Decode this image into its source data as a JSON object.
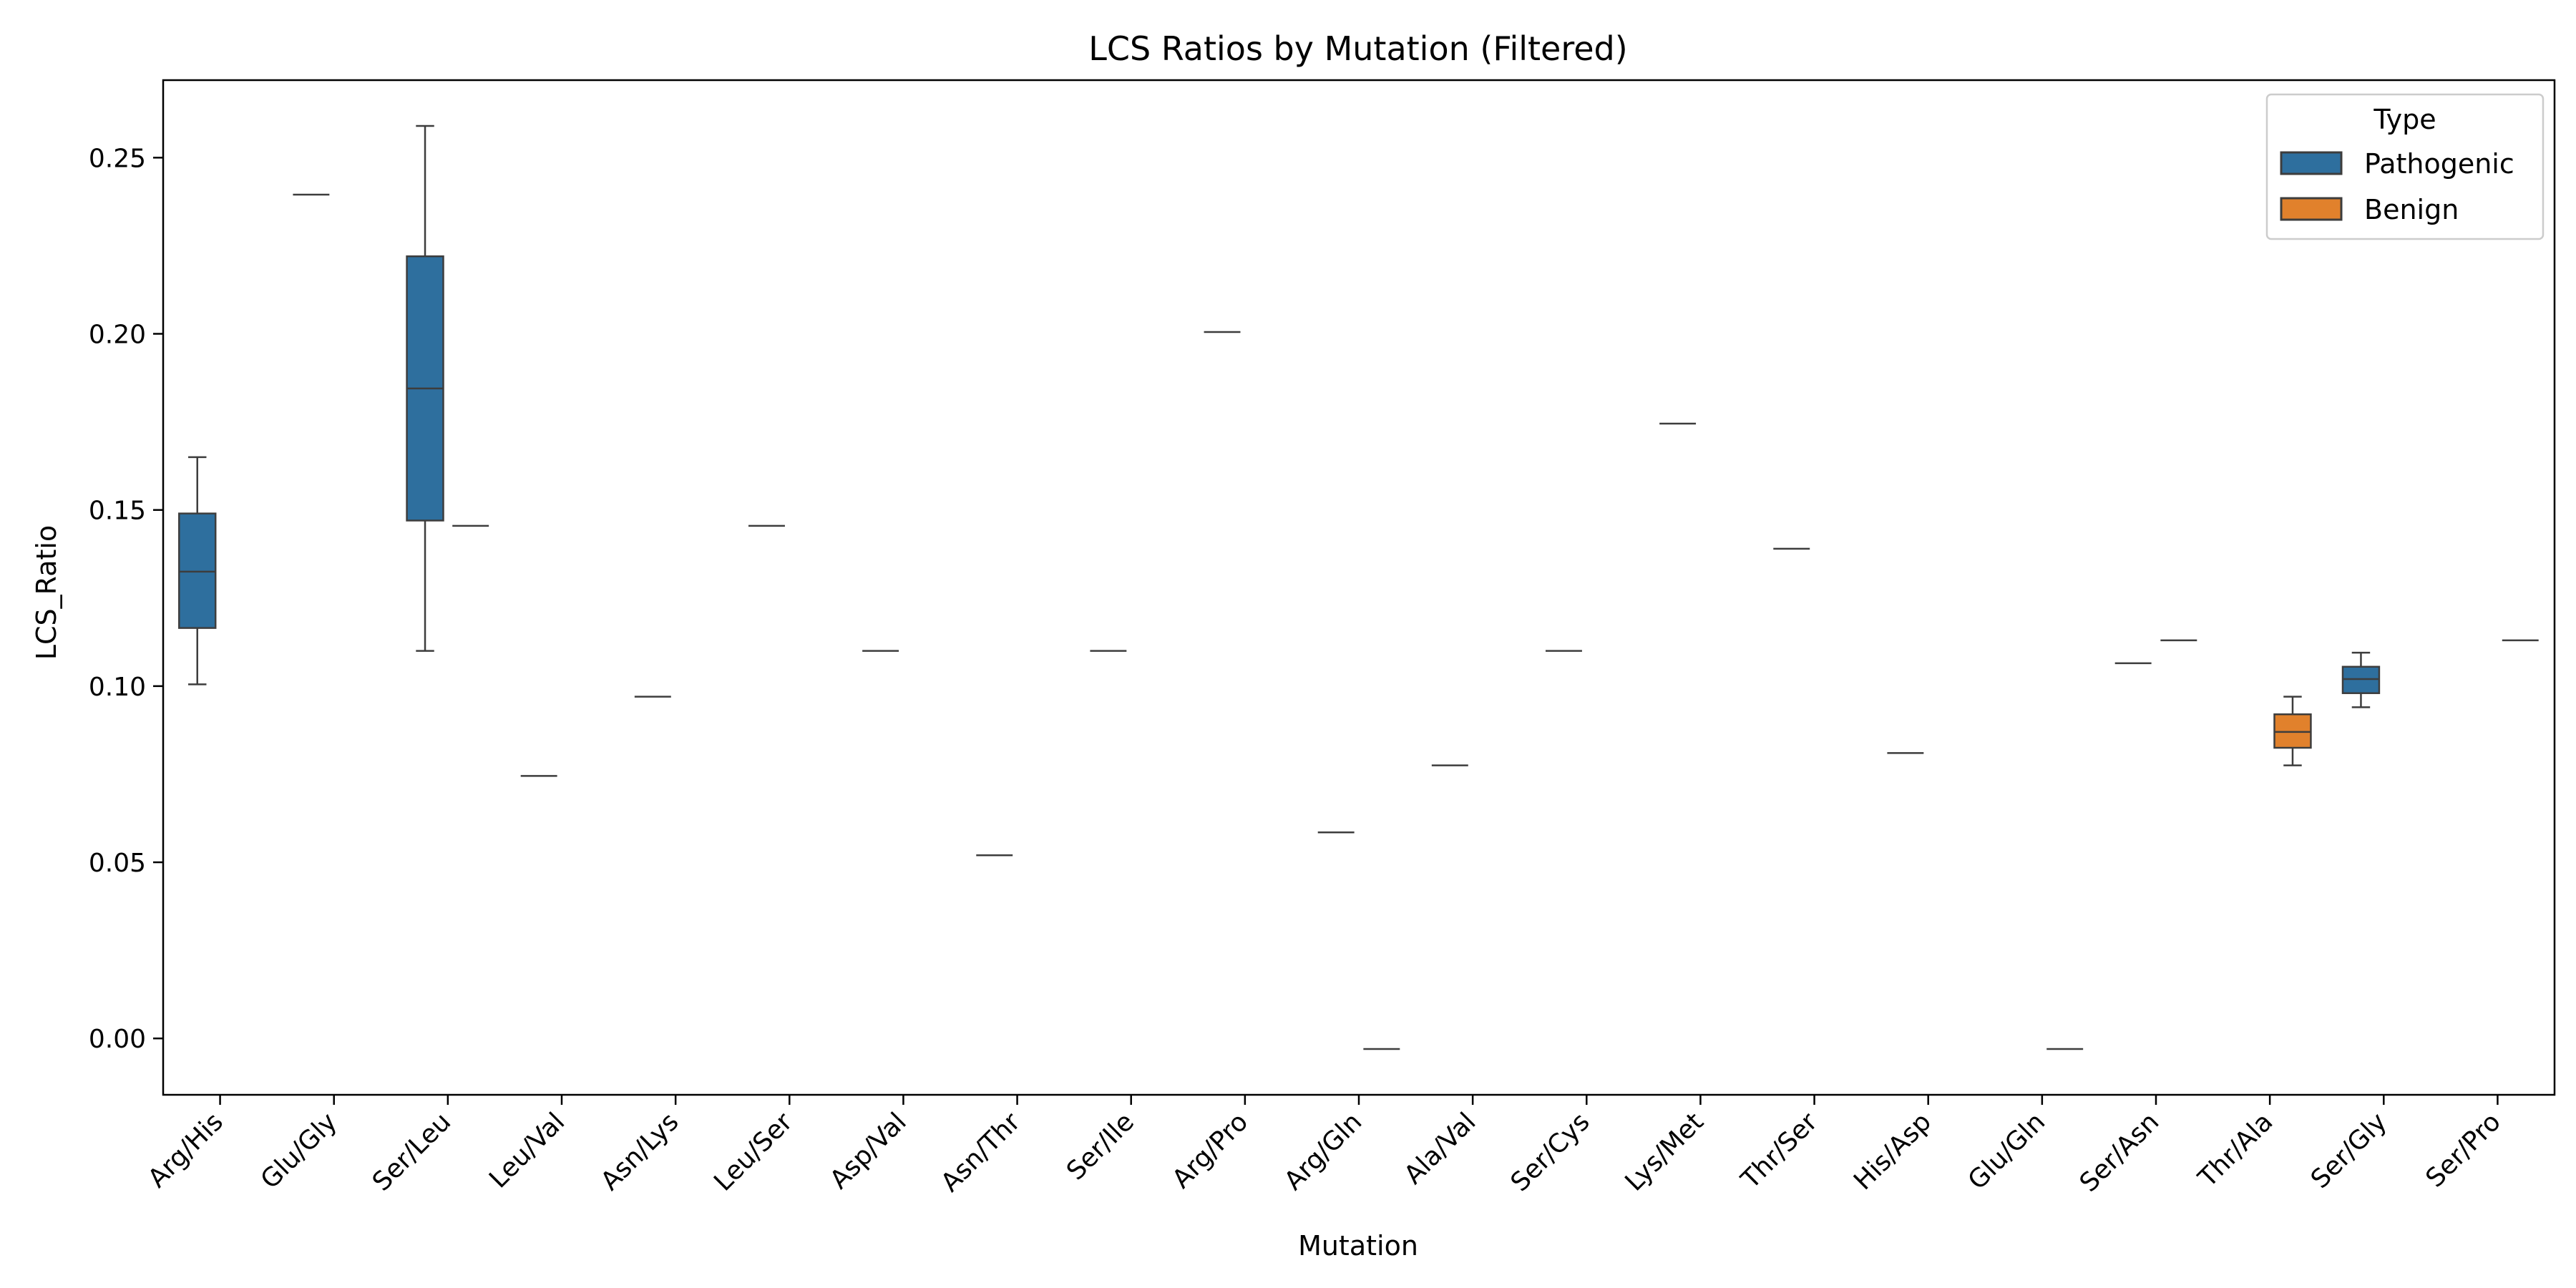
{
  "chart_data": {
    "type": "box",
    "title": "LCS Ratios by Mutation (Filtered)",
    "xlabel": "Mutation",
    "ylabel": "LCS_Ratio",
    "ylim": [
      -0.016,
      0.272
    ],
    "yticks": [
      0.0,
      0.05,
      0.1,
      0.15,
      0.2,
      0.25
    ],
    "ytick_labels": [
      "0.00",
      "0.05",
      "0.10",
      "0.15",
      "0.20",
      "0.25"
    ],
    "grid": false,
    "legend": {
      "title": "Type",
      "placement": "top-right",
      "entries": [
        {
          "name": "Pathogenic",
          "color": "#2e6f9e"
        },
        {
          "name": "Benign",
          "color": "#e1812c"
        }
      ]
    },
    "colors": {
      "Pathogenic": "#2e6f9e",
      "Benign": "#e1812c",
      "line": "#3d3d3d"
    },
    "categories": [
      "Arg/His",
      "Glu/Gly",
      "Ser/Leu",
      "Leu/Val",
      "Asn/Lys",
      "Leu/Ser",
      "Asp/Val",
      "Asn/Thr",
      "Ser/Ile",
      "Arg/Pro",
      "Arg/Gln",
      "Ala/Val",
      "Ser/Cys",
      "Lys/Met",
      "Thr/Ser",
      "His/Asp",
      "Glu/Gln",
      "Ser/Asn",
      "Thr/Ala",
      "Ser/Gly",
      "Ser/Pro"
    ],
    "boxes": [
      {
        "category": "Arg/His",
        "type": "Pathogenic",
        "min": 0.1005,
        "q1": 0.1165,
        "median": 0.1325,
        "q3": 0.149,
        "max": 0.165
      },
      {
        "category": "Glu/Gly",
        "type": "Pathogenic",
        "min": 0.2395,
        "q1": 0.2395,
        "median": 0.2395,
        "q3": 0.2395,
        "max": 0.2395
      },
      {
        "category": "Ser/Leu",
        "type": "Pathogenic",
        "min": 0.11,
        "q1": 0.147,
        "median": 0.1845,
        "q3": 0.222,
        "max": 0.259
      },
      {
        "category": "Ser/Leu",
        "type": "Benign",
        "min": 0.1455,
        "q1": 0.1455,
        "median": 0.1455,
        "q3": 0.1455,
        "max": 0.1455
      },
      {
        "category": "Leu/Val",
        "type": "Pathogenic",
        "min": 0.0745,
        "q1": 0.0745,
        "median": 0.0745,
        "q3": 0.0745,
        "max": 0.0745
      },
      {
        "category": "Asn/Lys",
        "type": "Pathogenic",
        "min": 0.097,
        "q1": 0.097,
        "median": 0.097,
        "q3": 0.097,
        "max": 0.097
      },
      {
        "category": "Leu/Ser",
        "type": "Pathogenic",
        "min": 0.1455,
        "q1": 0.1455,
        "median": 0.1455,
        "q3": 0.1455,
        "max": 0.1455
      },
      {
        "category": "Asp/Val",
        "type": "Pathogenic",
        "min": 0.11,
        "q1": 0.11,
        "median": 0.11,
        "q3": 0.11,
        "max": 0.11
      },
      {
        "category": "Asn/Thr",
        "type": "Pathogenic",
        "min": 0.052,
        "q1": 0.052,
        "median": 0.052,
        "q3": 0.052,
        "max": 0.052
      },
      {
        "category": "Ser/Ile",
        "type": "Pathogenic",
        "min": 0.11,
        "q1": 0.11,
        "median": 0.11,
        "q3": 0.11,
        "max": 0.11
      },
      {
        "category": "Arg/Pro",
        "type": "Pathogenic",
        "min": 0.2005,
        "q1": 0.2005,
        "median": 0.2005,
        "q3": 0.2005,
        "max": 0.2005
      },
      {
        "category": "Arg/Gln",
        "type": "Pathogenic",
        "min": 0.0585,
        "q1": 0.0585,
        "median": 0.0585,
        "q3": 0.0585,
        "max": 0.0585
      },
      {
        "category": "Arg/Gln",
        "type": "Benign",
        "min": -0.003,
        "q1": -0.003,
        "median": -0.003,
        "q3": -0.003,
        "max": -0.003
      },
      {
        "category": "Ala/Val",
        "type": "Pathogenic",
        "min": 0.0775,
        "q1": 0.0775,
        "median": 0.0775,
        "q3": 0.0775,
        "max": 0.0775
      },
      {
        "category": "Ser/Cys",
        "type": "Pathogenic",
        "min": 0.11,
        "q1": 0.11,
        "median": 0.11,
        "q3": 0.11,
        "max": 0.11
      },
      {
        "category": "Lys/Met",
        "type": "Pathogenic",
        "min": 0.1745,
        "q1": 0.1745,
        "median": 0.1745,
        "q3": 0.1745,
        "max": 0.1745
      },
      {
        "category": "Thr/Ser",
        "type": "Pathogenic",
        "min": 0.139,
        "q1": 0.139,
        "median": 0.139,
        "q3": 0.139,
        "max": 0.139
      },
      {
        "category": "His/Asp",
        "type": "Pathogenic",
        "min": 0.081,
        "q1": 0.081,
        "median": 0.081,
        "q3": 0.081,
        "max": 0.081
      },
      {
        "category": "Glu/Gln",
        "type": "Benign",
        "min": -0.003,
        "q1": -0.003,
        "median": -0.003,
        "q3": -0.003,
        "max": -0.003
      },
      {
        "category": "Ser/Asn",
        "type": "Pathogenic",
        "min": 0.1065,
        "q1": 0.1065,
        "median": 0.1065,
        "q3": 0.1065,
        "max": 0.1065
      },
      {
        "category": "Ser/Asn",
        "type": "Benign",
        "min": 0.113,
        "q1": 0.113,
        "median": 0.113,
        "q3": 0.113,
        "max": 0.113
      },
      {
        "category": "Thr/Ala",
        "type": "Benign",
        "min": 0.0775,
        "q1": 0.0825,
        "median": 0.087,
        "q3": 0.092,
        "max": 0.097
      },
      {
        "category": "Ser/Gly",
        "type": "Pathogenic",
        "min": 0.094,
        "q1": 0.098,
        "median": 0.102,
        "q3": 0.1055,
        "max": 0.1095
      },
      {
        "category": "Ser/Pro",
        "type": "Benign",
        "min": 0.113,
        "q1": 0.113,
        "median": 0.113,
        "q3": 0.113,
        "max": 0.113
      }
    ]
  }
}
